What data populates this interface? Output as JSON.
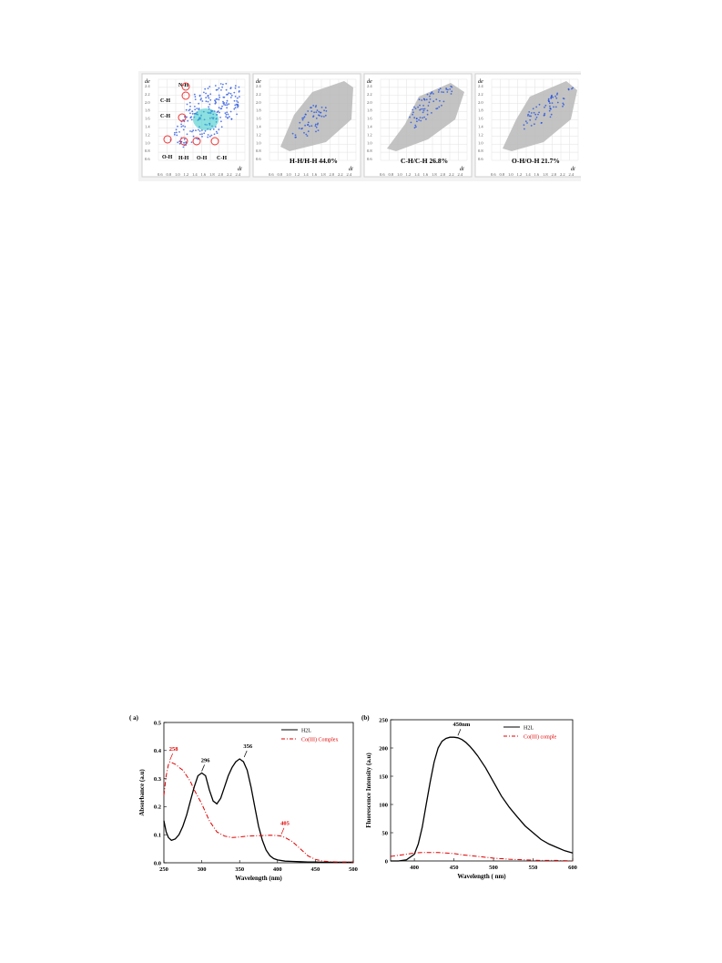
{
  "fingerprints": {
    "panels": [
      {
        "label": "",
        "annotations": [
          "N-H",
          "C-H",
          "C-H",
          "O-H",
          "H-H",
          "O-H",
          "C-H"
        ],
        "de_label": "de",
        "di_label": "di"
      },
      {
        "label": "H-H/H-H 44.0%",
        "de_label": "de",
        "di_label": "di"
      },
      {
        "label": "C-H/C-H 26.8%",
        "de_label": "de",
        "di_label": "di"
      },
      {
        "label": "O-H/O-H 21.7%",
        "de_label": "de",
        "di_label": "di"
      }
    ],
    "y_ticks": [
      "2.4",
      "2.2",
      "2.0",
      "1.8",
      "1.6",
      "1.4",
      "1.2",
      "1.0",
      "0.8",
      "0.6"
    ],
    "x_ticks": [
      "0.6",
      "0.8",
      "1.0",
      "1.2",
      "1.4",
      "1.6",
      "1.8",
      "2.0",
      "2.2",
      "2.4"
    ],
    "colors": {
      "points": "#1f4fe0",
      "core": "#2fc6c6",
      "gray": "#b9b9b9"
    }
  },
  "chart_data": [
    {
      "type": "line",
      "panel_label": "( a)",
      "xlabel": "Wavelength (nm)",
      "ylabel": "Absorbance (a.u)",
      "xlim": [
        250,
        500
      ],
      "ylim": [
        0.0,
        0.5
      ],
      "x_ticks": [
        250,
        300,
        350,
        400,
        450,
        500
      ],
      "y_ticks": [
        0.0,
        0.1,
        0.2,
        0.3,
        0.4,
        0.5
      ],
      "series": [
        {
          "name": "H2L",
          "color": "#000000",
          "dash": "solid",
          "x": [
            250,
            253,
            256,
            260,
            265,
            270,
            275,
            280,
            285,
            290,
            295,
            300,
            305,
            310,
            315,
            320,
            325,
            330,
            335,
            340,
            345,
            350,
            355,
            360,
            365,
            370,
            375,
            380,
            385,
            390,
            395,
            400,
            410,
            420,
            430,
            440,
            450,
            460,
            470,
            480,
            490,
            500
          ],
          "y": [
            0.15,
            0.11,
            0.09,
            0.08,
            0.085,
            0.1,
            0.13,
            0.17,
            0.22,
            0.27,
            0.31,
            0.32,
            0.31,
            0.26,
            0.22,
            0.21,
            0.23,
            0.27,
            0.31,
            0.34,
            0.36,
            0.37,
            0.36,
            0.33,
            0.27,
            0.2,
            0.13,
            0.08,
            0.045,
            0.025,
            0.015,
            0.01,
            0.006,
            0.005,
            0.004,
            0.003,
            0.003,
            0.002,
            0.002,
            0.002,
            0.002,
            0.002
          ]
        },
        {
          "name": "Co(III) Complex",
          "color": "#e00000",
          "dash": "dashdot",
          "x": [
            250,
            253,
            256,
            258,
            262,
            266,
            270,
            275,
            280,
            285,
            290,
            300,
            310,
            320,
            330,
            340,
            350,
            360,
            370,
            380,
            390,
            400,
            405,
            410,
            420,
            430,
            440,
            450,
            460,
            470,
            480,
            490,
            500
          ],
          "y": [
            0.24,
            0.31,
            0.35,
            0.36,
            0.355,
            0.35,
            0.34,
            0.33,
            0.31,
            0.29,
            0.26,
            0.21,
            0.15,
            0.11,
            0.095,
            0.09,
            0.092,
            0.095,
            0.096,
            0.097,
            0.098,
            0.097,
            0.095,
            0.09,
            0.075,
            0.05,
            0.025,
            0.012,
            0.006,
            0.004,
            0.003,
            0.003,
            0.003
          ]
        }
      ],
      "annotations": [
        {
          "text": "258",
          "x": 258,
          "y": 0.36,
          "color": "#e00000"
        },
        {
          "text": "296",
          "x": 300,
          "y": 0.32,
          "color": "#000000"
        },
        {
          "text": "356",
          "x": 356,
          "y": 0.37,
          "color": "#000000"
        },
        {
          "text": "405",
          "x": 405,
          "y": 0.095,
          "color": "#e00000"
        }
      ],
      "legend": "top-right",
      "legend_labels": [
        "H2L",
        "Co(III) Complex"
      ]
    },
    {
      "type": "line",
      "panel_label": "(b)",
      "xlabel": "Wavelength ( nm)",
      "ylabel": "Fluorescence Intensity (a.u)",
      "xlim": [
        370,
        600
      ],
      "ylim": [
        0,
        250
      ],
      "x_ticks": [
        400,
        450,
        500,
        550,
        600
      ],
      "y_ticks": [
        0,
        50,
        100,
        150,
        200,
        250
      ],
      "series": [
        {
          "name": "H2L",
          "color": "#000000",
          "dash": "solid",
          "x": [
            370,
            380,
            390,
            400,
            405,
            410,
            415,
            420,
            425,
            430,
            435,
            440,
            445,
            450,
            455,
            460,
            465,
            470,
            475,
            480,
            490,
            500,
            510,
            520,
            530,
            540,
            550,
            560,
            570,
            580,
            590,
            600
          ],
          "y": [
            0,
            0,
            2,
            12,
            30,
            60,
            100,
            140,
            175,
            200,
            212,
            217,
            219,
            219,
            218,
            215,
            210,
            203,
            195,
            186,
            165,
            140,
            115,
            95,
            78,
            62,
            50,
            38,
            30,
            24,
            18,
            14
          ]
        },
        {
          "name": "Co(III) comple",
          "color": "#e00000",
          "dash": "dashdot",
          "x": [
            370,
            380,
            390,
            400,
            410,
            420,
            430,
            440,
            450,
            460,
            480,
            500,
            520,
            540,
            560,
            580,
            600
          ],
          "y": [
            8,
            10,
            12,
            14,
            15,
            15,
            15,
            14,
            13,
            11,
            8,
            5,
            3,
            2,
            1,
            1,
            0
          ]
        }
      ],
      "annotations": [
        {
          "text": "450nm",
          "x": 455,
          "y": 219,
          "color": "#000000"
        }
      ],
      "legend": "top-right",
      "legend_labels": [
        "H2L",
        "Co(III) comple"
      ]
    }
  ]
}
